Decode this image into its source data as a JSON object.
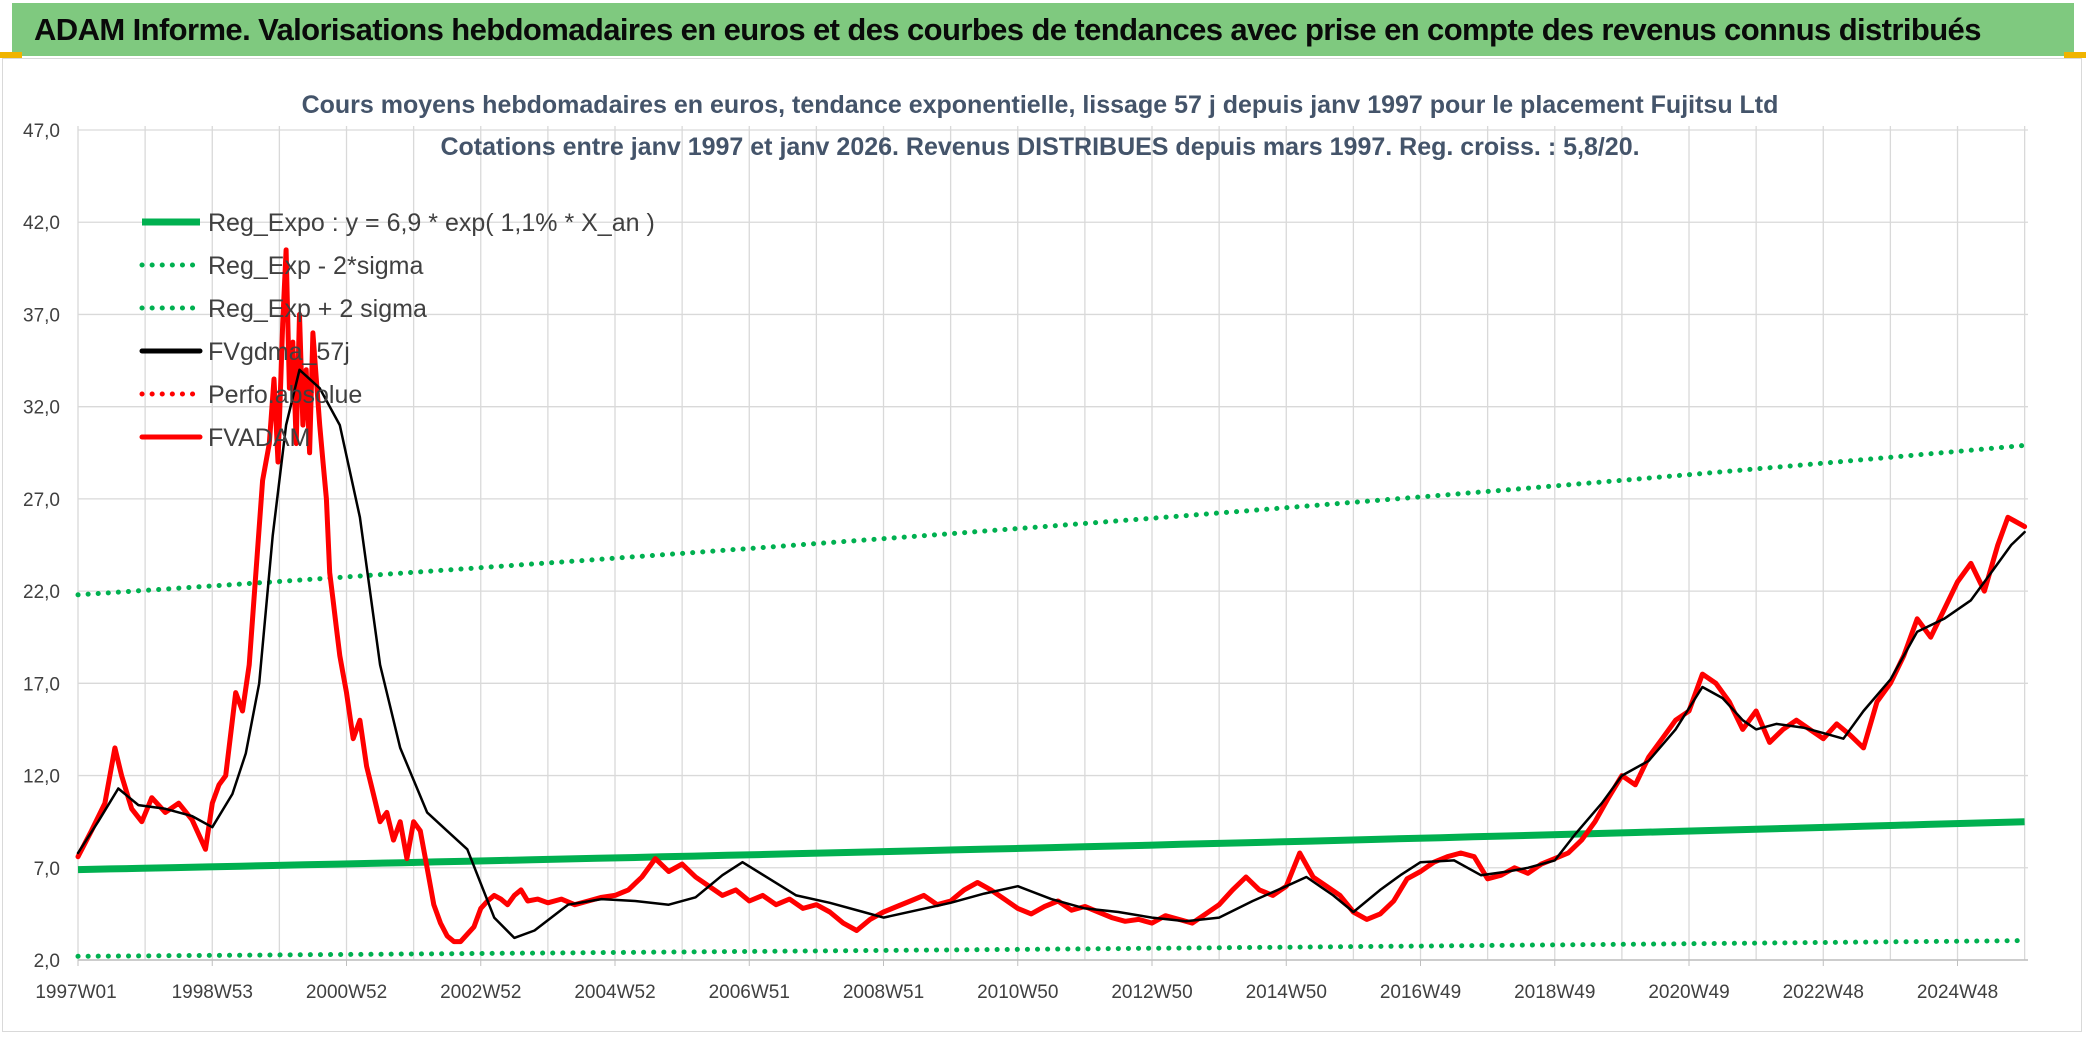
{
  "header": {
    "title": "ADAM Informe. Valorisations hebdomadaires en euros et des courbes de tendances avec prise en compte des revenus connus distribués"
  },
  "chart_data": {
    "type": "line",
    "title": "Cours moyens hebdomadaires en euros, tendance exponentielle, lissage 57 j depuis janv 1997 pour le placement Fujitsu Ltd",
    "subtitle": "Cotations entre janv 1997 et janv 2026. Revenus DISTRIBUES depuis mars 1997. Reg. croiss. : 5,8/20.",
    "xlabel": "",
    "ylabel": "",
    "ylim": [
      2.0,
      47.0
    ],
    "yticks": [
      "2,0",
      "7,0",
      "12,0",
      "17,0",
      "22,0",
      "27,0",
      "32,0",
      "37,0",
      "42,0",
      "47,0"
    ],
    "xlim": [
      1997.0,
      2026.05
    ],
    "xticks": [
      {
        "label": "1997W01",
        "x": 1997.0
      },
      {
        "label": "1998W53",
        "x": 1999.0
      },
      {
        "label": "2000W52",
        "x": 2001.0
      },
      {
        "label": "2002W52",
        "x": 2003.0
      },
      {
        "label": "2004W52",
        "x": 2005.0
      },
      {
        "label": "2006W51",
        "x": 2007.0
      },
      {
        "label": "2008W51",
        "x": 2009.0
      },
      {
        "label": "2010W50",
        "x": 2011.0
      },
      {
        "label": "2012W50",
        "x": 2013.0
      },
      {
        "label": "2014W50",
        "x": 2015.0
      },
      {
        "label": "2016W49",
        "x": 2017.0
      },
      {
        "label": "2018W49",
        "x": 2019.0
      },
      {
        "label": "2020W49",
        "x": 2021.0
      },
      {
        "label": "2022W48",
        "x": 2023.0
      },
      {
        "label": "2024W48",
        "x": 2025.0
      }
    ],
    "grid": true,
    "legend_position": "top-left",
    "colors": {
      "green": "#00b050",
      "black": "#000000",
      "red": "#ff0000"
    },
    "series": [
      {
        "name": "Reg_Expo : y = 6,9 * exp( 1,1% *  X_an )",
        "style": "solid",
        "color": "#00b050",
        "x": [
          1997.0,
          2026.0
        ],
        "y": [
          6.9,
          9.5
        ]
      },
      {
        "name": "Reg_Exp - 2*sigma",
        "style": "dotted",
        "color": "#00b050",
        "x": [
          1997.0,
          2026.0
        ],
        "y": [
          2.2,
          3.05
        ]
      },
      {
        "name": "Reg_Exp + 2 sigma",
        "style": "dotted",
        "color": "#00b050",
        "x": [
          1997.0,
          2026.0
        ],
        "y": [
          21.8,
          29.9
        ]
      },
      {
        "name": "FVgdma_57j",
        "style": "solid",
        "color": "#000000",
        "x": [
          1997.0,
          1997.3,
          1997.6,
          1997.9,
          1998.3,
          1998.7,
          1999.0,
          1999.3,
          1999.5,
          1999.7,
          1999.9,
          2000.1,
          2000.3,
          2000.6,
          2000.9,
          2001.2,
          2001.5,
          2001.8,
          2002.2,
          2002.5,
          2002.8,
          2003.2,
          2003.5,
          2003.8,
          2004.3,
          2004.8,
          2005.3,
          2005.8,
          2006.2,
          2006.6,
          2006.9,
          2007.3,
          2007.7,
          2008.2,
          2008.7,
          2009.0,
          2009.5,
          2010.0,
          2010.5,
          2011.0,
          2011.5,
          2012.0,
          2012.5,
          2013.0,
          2013.5,
          2014.0,
          2014.5,
          2015.0,
          2015.3,
          2015.7,
          2016.0,
          2016.4,
          2016.7,
          2017.0,
          2017.5,
          2017.9,
          2018.3,
          2018.6,
          2019.0,
          2019.3,
          2019.7,
          2020.0,
          2020.4,
          2020.8,
          2021.2,
          2021.5,
          2021.8,
          2022.0,
          2022.3,
          2022.7,
          2023.0,
          2023.3,
          2023.6,
          2024.0,
          2024.4,
          2024.8,
          2025.2,
          2025.5,
          2025.8,
          2026.0
        ],
        "y": [
          7.8,
          9.5,
          11.3,
          10.4,
          10.2,
          9.8,
          9.2,
          11.0,
          13.2,
          17.0,
          25.0,
          31.0,
          34.0,
          33.0,
          31.0,
          26.0,
          18.0,
          13.5,
          10.0,
          9.0,
          8.0,
          4.3,
          3.2,
          3.6,
          5.0,
          5.3,
          5.2,
          5.0,
          5.4,
          6.6,
          7.3,
          6.4,
          5.5,
          5.1,
          4.6,
          4.3,
          4.7,
          5.1,
          5.6,
          6.0,
          5.3,
          4.8,
          4.6,
          4.3,
          4.1,
          4.3,
          5.2,
          6.0,
          6.5,
          5.5,
          4.6,
          5.8,
          6.6,
          7.3,
          7.4,
          6.6,
          6.8,
          7.0,
          7.4,
          8.8,
          10.5,
          12.0,
          12.8,
          14.5,
          16.8,
          16.2,
          15.0,
          14.5,
          14.8,
          14.6,
          14.3,
          14.0,
          15.5,
          17.2,
          19.8,
          20.5,
          21.5,
          23.0,
          24.5,
          25.2
        ]
      },
      {
        "name": "Perfo.absolue",
        "style": "dotted",
        "color": "#ff0000",
        "x": [],
        "y": []
      },
      {
        "name": "FVADAM",
        "style": "solid",
        "color": "#ff0000",
        "x": [
          1997.0,
          1997.2,
          1997.4,
          1997.55,
          1997.65,
          1997.8,
          1997.95,
          1998.1,
          1998.3,
          1998.5,
          1998.7,
          1998.9,
          1999.0,
          1999.1,
          1999.2,
          1999.35,
          1999.45,
          1999.55,
          1999.65,
          1999.75,
          1999.85,
          1999.92,
          1999.98,
          2000.05,
          2000.1,
          2000.15,
          2000.2,
          2000.25,
          2000.3,
          2000.35,
          2000.4,
          2000.45,
          2000.5,
          2000.55,
          2000.6,
          2000.65,
          2000.7,
          2000.75,
          2000.8,
          2000.85,
          2000.9,
          2000.95,
          2001.0,
          2001.1,
          2001.2,
          2001.3,
          2001.4,
          2001.5,
          2001.6,
          2001.7,
          2001.8,
          2001.9,
          2002.0,
          2002.1,
          2002.2,
          2002.3,
          2002.4,
          2002.5,
          2002.6,
          2002.7,
          2002.8,
          2002.9,
          2003.0,
          2003.1,
          2003.2,
          2003.3,
          2003.4,
          2003.5,
          2003.6,
          2003.7,
          2003.85,
          2004.0,
          2004.2,
          2004.4,
          2004.6,
          2004.8,
          2005.0,
          2005.2,
          2005.4,
          2005.6,
          2005.8,
          2006.0,
          2006.2,
          2006.4,
          2006.6,
          2006.8,
          2007.0,
          2007.2,
          2007.4,
          2007.6,
          2007.8,
          2008.0,
          2008.2,
          2008.4,
          2008.6,
          2008.8,
          2009.0,
          2009.2,
          2009.4,
          2009.6,
          2009.8,
          2010.0,
          2010.2,
          2010.4,
          2010.6,
          2010.8,
          2011.0,
          2011.2,
          2011.4,
          2011.6,
          2011.8,
          2012.0,
          2012.2,
          2012.4,
          2012.6,
          2012.8,
          2013.0,
          2013.2,
          2013.4,
          2013.6,
          2013.8,
          2014.0,
          2014.2,
          2014.4,
          2014.6,
          2014.8,
          2015.0,
          2015.2,
          2015.4,
          2015.6,
          2015.8,
          2016.0,
          2016.2,
          2016.4,
          2016.6,
          2016.8,
          2017.0,
          2017.2,
          2017.4,
          2017.6,
          2017.8,
          2018.0,
          2018.2,
          2018.4,
          2018.6,
          2018.8,
          2019.0,
          2019.2,
          2019.4,
          2019.6,
          2019.8,
          2020.0,
          2020.2,
          2020.4,
          2020.6,
          2020.8,
          2021.0,
          2021.2,
          2021.4,
          2021.6,
          2021.8,
          2022.0,
          2022.2,
          2022.4,
          2022.6,
          2022.8,
          2023.0,
          2023.2,
          2023.4,
          2023.6,
          2023.8,
          2024.0,
          2024.2,
          2024.4,
          2024.6,
          2024.8,
          2025.0,
          2025.2,
          2025.4,
          2025.6,
          2025.75,
          2025.85,
          2026.0
        ],
        "y": [
          7.6,
          9.0,
          10.5,
          13.5,
          12.0,
          10.2,
          9.5,
          10.8,
          10.0,
          10.5,
          9.6,
          8.0,
          10.5,
          11.5,
          12.0,
          16.5,
          15.5,
          18.0,
          23.0,
          28.0,
          30.0,
          33.5,
          29.0,
          36.5,
          40.5,
          33.0,
          35.5,
          30.0,
          37.0,
          31.0,
          34.0,
          29.5,
          36.0,
          33.5,
          31.0,
          29.0,
          27.0,
          23.0,
          21.5,
          20.0,
          18.5,
          17.5,
          16.5,
          14.0,
          15.0,
          12.5,
          11.0,
          9.5,
          10.0,
          8.5,
          9.5,
          7.5,
          9.5,
          9.0,
          7.0,
          5.0,
          4.0,
          3.3,
          3.0,
          3.0,
          3.4,
          3.8,
          4.8,
          5.2,
          5.5,
          5.3,
          5.0,
          5.5,
          5.8,
          5.2,
          5.3,
          5.1,
          5.3,
          5.0,
          5.2,
          5.4,
          5.5,
          5.8,
          6.5,
          7.5,
          6.8,
          7.2,
          6.5,
          6.0,
          5.5,
          5.8,
          5.2,
          5.5,
          5.0,
          5.3,
          4.8,
          5.0,
          4.6,
          4.0,
          3.6,
          4.2,
          4.6,
          4.9,
          5.2,
          5.5,
          5.0,
          5.2,
          5.8,
          6.2,
          5.8,
          5.3,
          4.8,
          4.5,
          4.9,
          5.2,
          4.7,
          4.9,
          4.6,
          4.3,
          4.1,
          4.2,
          4.0,
          4.4,
          4.2,
          4.0,
          4.5,
          5.0,
          5.8,
          6.5,
          5.8,
          5.5,
          6.0,
          7.8,
          6.5,
          6.0,
          5.5,
          4.6,
          4.2,
          4.5,
          5.2,
          6.4,
          6.8,
          7.3,
          7.6,
          7.8,
          7.6,
          6.4,
          6.6,
          7.0,
          6.7,
          7.2,
          7.5,
          7.8,
          8.5,
          9.5,
          10.8,
          12.0,
          11.5,
          13.0,
          14.0,
          15.0,
          15.5,
          17.5,
          17.0,
          16.0,
          14.5,
          15.5,
          13.8,
          14.5,
          15.0,
          14.5,
          14.0,
          14.8,
          14.2,
          13.5,
          16.0,
          17.0,
          18.5,
          20.5,
          19.5,
          21.0,
          22.5,
          23.5,
          22.0,
          24.5,
          26.0,
          25.8,
          25.5
        ]
      }
    ]
  }
}
